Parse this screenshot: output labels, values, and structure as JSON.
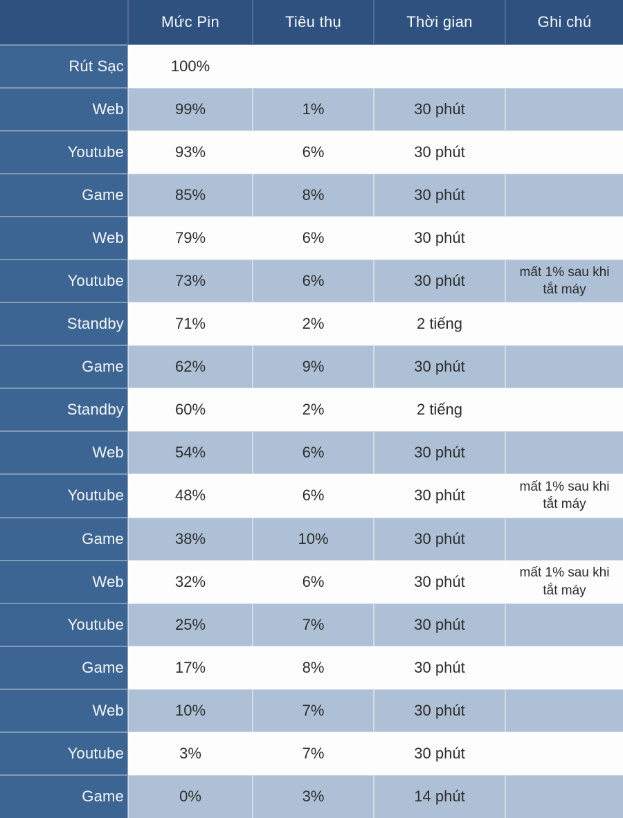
{
  "chart_data": {
    "type": "table",
    "title": "",
    "columns": [
      "Mức Pin",
      "Tiêu thụ",
      "Thời gian",
      "Ghi chú"
    ],
    "rows": [
      {
        "label": "Rút Sạc",
        "cells": [
          "100%",
          "",
          "",
          ""
        ]
      },
      {
        "label": "Web",
        "cells": [
          "99%",
          "1%",
          "30 phút",
          ""
        ]
      },
      {
        "label": "Youtube",
        "cells": [
          "93%",
          "6%",
          "30 phút",
          ""
        ]
      },
      {
        "label": "Game",
        "cells": [
          "85%",
          "8%",
          "30 phút",
          ""
        ]
      },
      {
        "label": "Web",
        "cells": [
          "79%",
          "6%",
          "30 phút",
          ""
        ]
      },
      {
        "label": "Youtube",
        "cells": [
          "73%",
          "6%",
          "30 phút",
          "mất 1% sau khi tắt máy"
        ]
      },
      {
        "label": "Standby",
        "cells": [
          "71%",
          "2%",
          "2 tiếng",
          ""
        ]
      },
      {
        "label": "Game",
        "cells": [
          "62%",
          "9%",
          "30 phút",
          ""
        ]
      },
      {
        "label": "Standby",
        "cells": [
          "60%",
          "2%",
          "2 tiếng",
          ""
        ]
      },
      {
        "label": "Web",
        "cells": [
          "54%",
          "6%",
          "30 phút",
          ""
        ]
      },
      {
        "label": "Youtube",
        "cells": [
          "48%",
          "6%",
          "30 phút",
          "mất 1% sau khi tắt máy"
        ]
      },
      {
        "label": "Game",
        "cells": [
          "38%",
          "10%",
          "30 phút",
          ""
        ]
      },
      {
        "label": "Web",
        "cells": [
          "32%",
          "6%",
          "30 phút",
          "mất 1% sau khi tắt máy"
        ]
      },
      {
        "label": "Youtube",
        "cells": [
          "25%",
          "7%",
          "30 phút",
          ""
        ]
      },
      {
        "label": "Game",
        "cells": [
          "17%",
          "8%",
          "30 phút",
          ""
        ]
      },
      {
        "label": "Web",
        "cells": [
          "10%",
          "7%",
          "30 phút",
          ""
        ]
      },
      {
        "label": "Youtube",
        "cells": [
          "3%",
          "7%",
          "30 phút",
          ""
        ]
      },
      {
        "label": "Game",
        "cells": [
          "0%",
          "3%",
          "14 phút",
          ""
        ]
      }
    ]
  },
  "colors": {
    "header_bg": "#2f5180",
    "label_column_bg": "#3d6593",
    "stripe_row_bg": "#adc0d6",
    "white_row_bg": "#fdfdfd",
    "header_text": "#ffffff",
    "body_text": "#2d2d2d"
  }
}
